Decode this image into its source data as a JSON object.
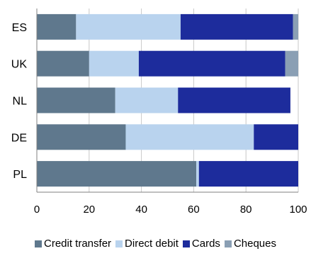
{
  "chart_data": {
    "type": "bar",
    "orientation": "horizontal",
    "stacked": true,
    "categories": [
      "ES",
      "UK",
      "NL",
      "DE",
      "PL"
    ],
    "series": [
      {
        "name": "Credit transfer",
        "color": "#5f788d",
        "values": [
          15,
          20,
          30,
          34,
          61
        ]
      },
      {
        "name": "Direct debit",
        "color": "#b9d3ee",
        "values": [
          40,
          19,
          24,
          49,
          1
        ]
      },
      {
        "name": "Cards",
        "color": "#1d2c9c",
        "values": [
          43,
          56,
          43,
          17,
          38
        ]
      },
      {
        "name": "Cheques",
        "color": "#8a9fb4",
        "values": [
          2,
          5,
          0,
          0,
          0
        ]
      }
    ],
    "xlim": [
      0,
      100
    ],
    "xticks": [
      "0",
      "20",
      "40",
      "60",
      "80",
      "100"
    ],
    "grid": "vertical",
    "legend_position": "bottom"
  }
}
